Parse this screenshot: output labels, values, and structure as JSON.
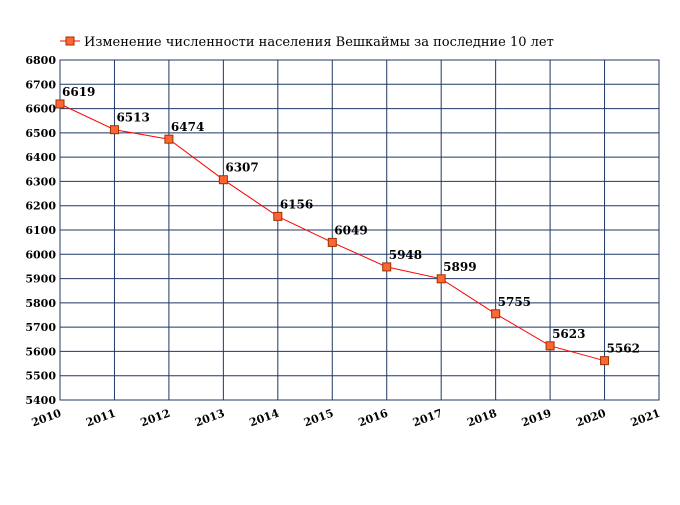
{
  "chart_data": {
    "type": "line",
    "title": "",
    "xlabel": "",
    "ylabel": "",
    "x": [
      2010,
      2011,
      2012,
      2013,
      2014,
      2015,
      2016,
      2017,
      2018,
      2019,
      2020
    ],
    "xlim": [
      2010,
      2021
    ],
    "x_ticks": [
      "2010",
      "2011",
      "2012",
      "2013",
      "2014",
      "2015",
      "2016",
      "2017",
      "2018",
      "2019",
      "2020",
      "2021"
    ],
    "ylim": [
      5400,
      6800
    ],
    "y_ticks": [
      "5400",
      "5500",
      "5600",
      "5700",
      "5800",
      "5900",
      "6000",
      "6100",
      "6200",
      "6300",
      "6400",
      "6500",
      "6600",
      "6700",
      "6800"
    ],
    "grid": true,
    "legend_position": "top-left",
    "series": [
      {
        "name": "Изменение численности населения Вешкаймы за последние 10 лет",
        "values": [
          6619,
          6513,
          6474,
          6307,
          6156,
          6049,
          5948,
          5899,
          5755,
          5623,
          5562
        ],
        "labels": [
          "6619",
          "6513",
          "6474",
          "6307",
          "6156",
          "6049",
          "5948",
          "5899",
          "5755",
          "5623",
          "5562"
        ],
        "line_color": "#ff0000",
        "marker_fill": "#ff6633",
        "marker_edge": "#993300"
      }
    ],
    "grid_color": "#1f3864"
  }
}
